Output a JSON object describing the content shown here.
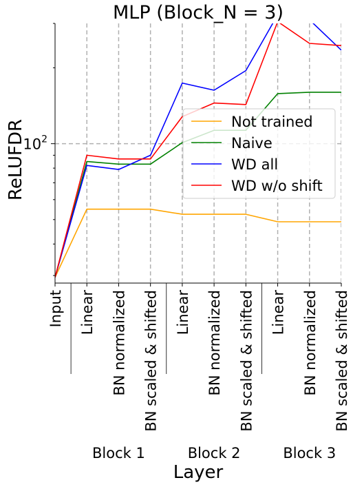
{
  "chart_data": {
    "type": "line",
    "title": "MLP (Block_N = 3)",
    "xlabel": "Layer",
    "ylabel": "ReLUFDR",
    "yscale": "log",
    "ylim": [
      28,
      300
    ],
    "y_major_tick": {
      "value": 100,
      "label": "10",
      "exponent": "2"
    },
    "y_minor_ticks": [
      30,
      40,
      50,
      60,
      70,
      80,
      90,
      200,
      300
    ],
    "grid": true,
    "legend_position": "center-right",
    "x_tick_labels": [
      "Input",
      "Linear",
      "BN normalized",
      "BN scaled & shifted",
      "Linear",
      "BN normalized",
      "BN scaled & shifted",
      "Linear",
      "BN normalized",
      "BN scaled & shifted"
    ],
    "groups": [
      "Block 1",
      "Block 2",
      "Block 3"
    ],
    "series": [
      {
        "name": "Not trained",
        "color": "#ffa500",
        "values": [
          29.5,
          55,
          55,
          55,
          52.5,
          52.5,
          52.5,
          49,
          49,
          49
        ]
      },
      {
        "name": "Naive",
        "color": "#008000",
        "values": [
          29.5,
          85,
          83,
          83,
          101,
          113,
          113,
          158,
          160,
          160
        ]
      },
      {
        "name": "WD all",
        "color": "#0000ff",
        "values": [
          29.5,
          82,
          79,
          90,
          174,
          163,
          195,
          325,
          310,
          235
        ]
      },
      {
        "name": "WD w/o shift",
        "color": "#ff0000",
        "values": [
          29.5,
          90,
          87,
          87,
          128,
          145,
          143,
          305,
          250,
          245
        ]
      }
    ]
  }
}
